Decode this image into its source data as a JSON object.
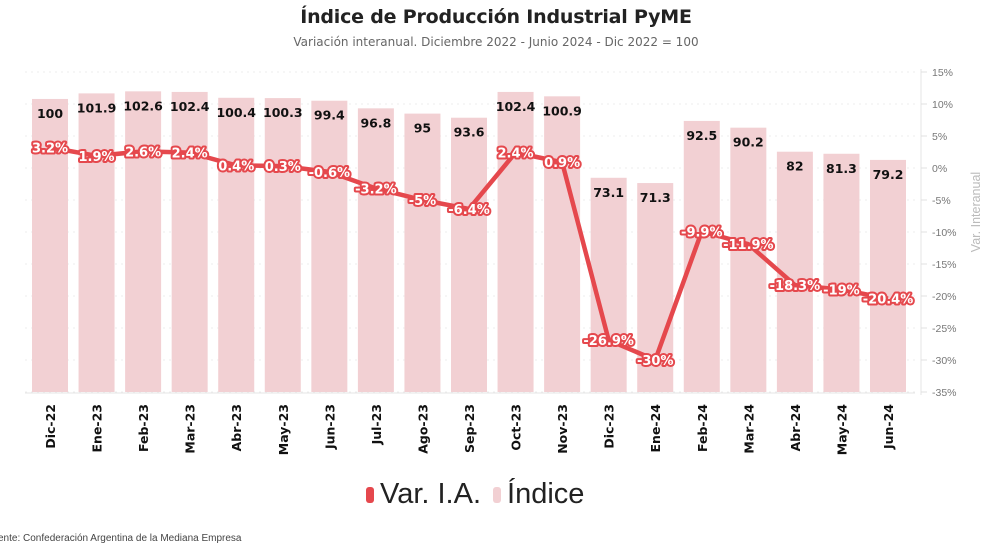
{
  "chart_data": {
    "type": "bar+line",
    "title": "Índice de Producción Industrial PyME",
    "subtitle": "Variación interanual. Diciembre 2022 - Junio 2024 - Dic 2022 = 100",
    "categories": [
      "Dic-22",
      "Ene-23",
      "Feb-23",
      "Mar-23",
      "Abr-23",
      "May-23",
      "Jun-23",
      "Jul-23",
      "Ago-23",
      "Sep-23",
      "Oct-23",
      "Nov-23",
      "Dic-23",
      "Ene-24",
      "Feb-24",
      "Mar-24",
      "Abr-24",
      "May-24",
      "Jun-24"
    ],
    "series": [
      {
        "name": "Var. I.A.",
        "type": "line",
        "axis": "right",
        "color": "#e5484d",
        "values": [
          3.2,
          1.9,
          2.6,
          2.4,
          0.4,
          0.3,
          -0.6,
          -3.2,
          -5,
          -6.4,
          2.4,
          0.9,
          -26.9,
          -30,
          -9.9,
          -11.9,
          -18.3,
          -19,
          -20.4
        ],
        "labels": [
          "3.2%",
          "1.9%",
          "2.6%",
          "2.4%",
          "0.4%",
          "0.3%",
          "-0.6%",
          "-3.2%",
          "-5%",
          "-6.4%",
          "2.4%",
          "0.9%",
          "-26.9%",
          "-30%",
          "-9.9%",
          "-11.9%",
          "-18.3%",
          "-19%",
          "-20.4%"
        ]
      },
      {
        "name": "Índice",
        "type": "bar",
        "axis": "left",
        "color": "#f2d0d3",
        "values": [
          100,
          101.9,
          102.6,
          102.4,
          100.4,
          100.3,
          99.4,
          96.8,
          95,
          93.6,
          102.4,
          100.9,
          73.1,
          71.3,
          92.5,
          90.2,
          82,
          81.3,
          79.2
        ],
        "labels": [
          "100",
          "101.9",
          "102.6",
          "102.4",
          "100.4",
          "100.3",
          "99.4",
          "96.8",
          "95",
          "93.6",
          "102.4",
          "100.9",
          "73.1",
          "71.3",
          "92.5",
          "90.2",
          "82",
          "81.3",
          "79.2"
        ]
      }
    ],
    "y_right": {
      "label": "Var. Interanual",
      "range": [
        -35,
        15
      ],
      "ticks": [
        "15%",
        "10%",
        "5%",
        "0%",
        "-5%",
        "-10%",
        "-15%",
        "-20%",
        "-25%",
        "-30%",
        "-35%"
      ],
      "tick_values": [
        15,
        10,
        5,
        0,
        -5,
        -10,
        -15,
        -20,
        -25,
        -30,
        -35
      ]
    },
    "y_left": {
      "range": [
        0,
        109.2
      ],
      "visible": false
    },
    "grid": true,
    "legend": {
      "position": "bottom-center",
      "entries": [
        "Var. I.A.",
        "Índice"
      ]
    }
  },
  "source": "ente: Confederación Argentina de la Mediana Empresa"
}
